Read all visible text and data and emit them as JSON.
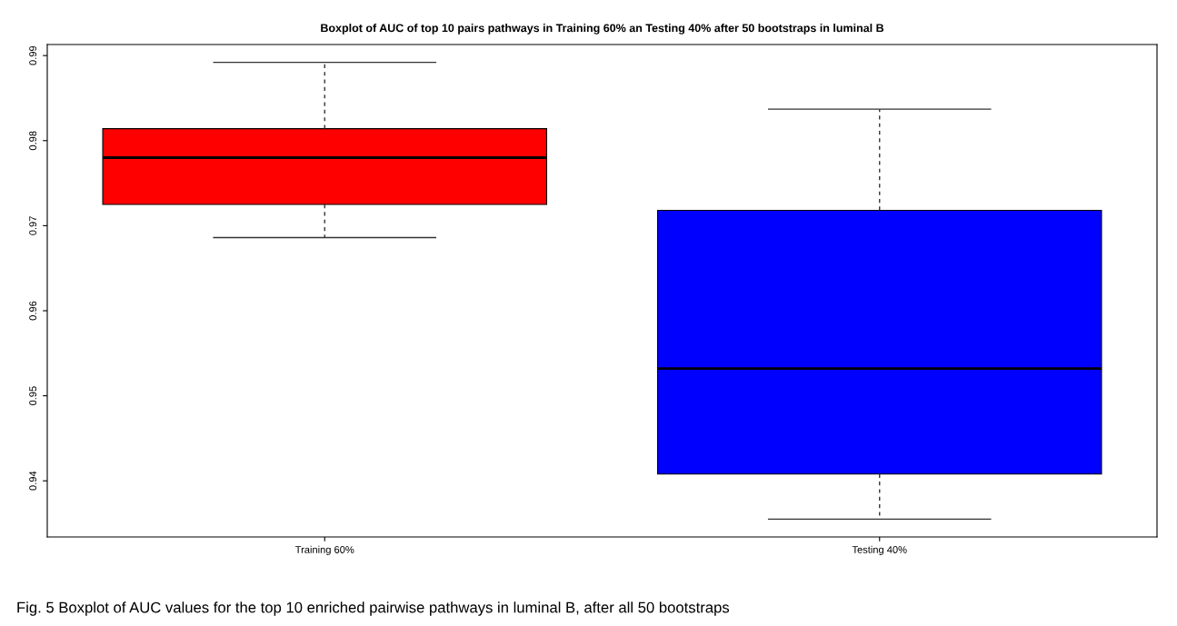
{
  "chart_data": {
    "type": "box",
    "title": "Boxplot of AUC of top 10 pairs pathways in Training 60% an Testing 40% after 50 bootstraps in luminal B",
    "categories": [
      "Training 60%",
      "Testing 40%"
    ],
    "colors": [
      "#ff0000",
      "#0000ff"
    ],
    "boxes": [
      {
        "low": 0.9686,
        "q1": 0.9725,
        "median": 0.978,
        "q3": 0.9814,
        "high": 0.9892
      },
      {
        "low": 0.9355,
        "q1": 0.9408,
        "median": 0.9532,
        "q3": 0.9718,
        "high": 0.9837
      }
    ],
    "ylim": [
      0.9334,
      0.9913
    ],
    "yticks": [
      0.94,
      0.95,
      0.96,
      0.97,
      0.98,
      0.99
    ],
    "grid": false,
    "annotations": [
      "Fig. 5 Boxplot of AUC values for the top 10 enriched pairwise pathways in luminal B, after all 50 bootstraps"
    ]
  }
}
